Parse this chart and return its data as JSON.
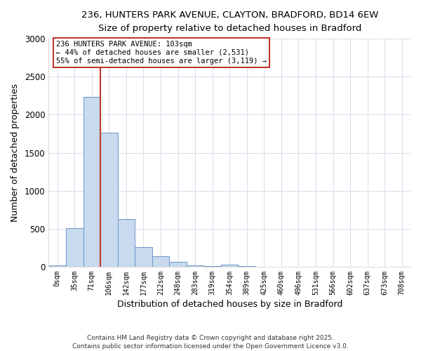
{
  "title1": "236, HUNTERS PARK AVENUE, CLAYTON, BRADFORD, BD14 6EW",
  "title2": "Size of property relative to detached houses in Bradford",
  "xlabel": "Distribution of detached houses by size in Bradford",
  "ylabel": "Number of detached properties",
  "bin_labels": [
    "0sqm",
    "35sqm",
    "71sqm",
    "106sqm",
    "142sqm",
    "177sqm",
    "212sqm",
    "248sqm",
    "283sqm",
    "319sqm",
    "354sqm",
    "389sqm",
    "425sqm",
    "460sqm",
    "496sqm",
    "531sqm",
    "566sqm",
    "602sqm",
    "637sqm",
    "673sqm",
    "708sqm"
  ],
  "bin_values": [
    15,
    510,
    2230,
    1760,
    630,
    260,
    140,
    65,
    20,
    5,
    30,
    5,
    0,
    0,
    0,
    0,
    0,
    0,
    0,
    0,
    0
  ],
  "bar_color": "#c9d9ee",
  "bar_edge_color": "#6a96c8",
  "vline_x_index": 3.0,
  "vline_color": "#c0392b",
  "annotation_title": "236 HUNTERS PARK AVENUE: 103sqm",
  "annotation_line1": "← 44% of detached houses are smaller (2,531)",
  "annotation_line2": "55% of semi-detached houses are larger (3,119) →",
  "annotation_box_color": "#c0392b",
  "ylim": [
    0,
    3000
  ],
  "yticks": [
    0,
    500,
    1000,
    1500,
    2000,
    2500,
    3000
  ],
  "footnote1": "Contains HM Land Registry data © Crown copyright and database right 2025.",
  "footnote2": "Contains public sector information licensed under the Open Government Licence v3.0.",
  "background_color": "#ffffff",
  "grid_color": "#d0d8e8"
}
